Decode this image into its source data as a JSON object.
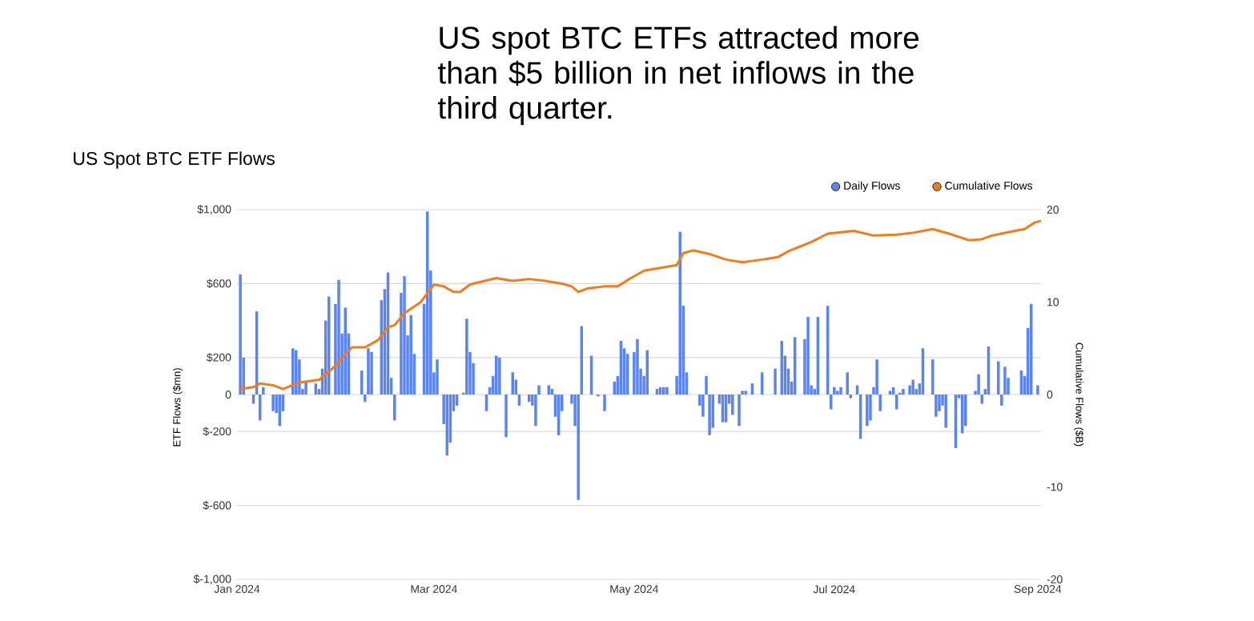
{
  "chart_data": {
    "type": "bar",
    "title": "US spot BTC ETFs attracted more than $5 billion in net inflows in the third quarter.",
    "subtitle": "US Spot BTC ETF Flows",
    "ylabel": "ETF Flows ($mn)",
    "y2label": "Cumulative Flows ($B)",
    "x": [
      "2024-01-02",
      "2024-01-03",
      "2024-01-06",
      "2024-01-07",
      "2024-01-08",
      "2024-01-09",
      "2024-01-12",
      "2024-01-13",
      "2024-01-14",
      "2024-01-15",
      "2024-01-18",
      "2024-01-19",
      "2024-01-20",
      "2024-01-21",
      "2024-01-22",
      "2024-01-25",
      "2024-01-26",
      "2024-01-27",
      "2024-01-28",
      "2024-01-29",
      "2024-01-31",
      "2024-02-01",
      "2024-02-02",
      "2024-02-03",
      "2024-02-04",
      "2024-02-08",
      "2024-02-09",
      "2024-02-10",
      "2024-02-11",
      "2024-02-14",
      "2024-02-15",
      "2024-02-16",
      "2024-02-17",
      "2024-02-18",
      "2024-02-20",
      "2024-02-21",
      "2024-02-22",
      "2024-02-23",
      "2024-02-24",
      "2024-02-27",
      "2024-02-28",
      "2024-02-29",
      "2024-03-01",
      "2024-03-02",
      "2024-03-04",
      "2024-03-05",
      "2024-03-06",
      "2024-03-07",
      "2024-03-08",
      "2024-03-10",
      "2024-03-11",
      "2024-03-12",
      "2024-03-13",
      "2024-03-17",
      "2024-03-18",
      "2024-03-19",
      "2024-03-20",
      "2024-03-21",
      "2024-03-23",
      "2024-03-25",
      "2024-03-26",
      "2024-03-27",
      "2024-03-30",
      "2024-03-31",
      "2024-04-01",
      "2024-04-02",
      "2024-04-05",
      "2024-04-06",
      "2024-04-07",
      "2024-04-08",
      "2024-04-09",
      "2024-04-12",
      "2024-04-13",
      "2024-04-14",
      "2024-04-15",
      "2024-04-18",
      "2024-04-20",
      "2024-04-22",
      "2024-04-25",
      "2024-04-26",
      "2024-04-27",
      "2024-04-28",
      "2024-04-29",
      "2024-05-01",
      "2024-05-02",
      "2024-05-03",
      "2024-05-04",
      "2024-05-05",
      "2024-05-08",
      "2024-05-09",
      "2024-05-10",
      "2024-05-11",
      "2024-05-14",
      "2024-05-15",
      "2024-05-16",
      "2024-05-17",
      "2024-05-21",
      "2024-05-22",
      "2024-05-23",
      "2024-05-24",
      "2024-05-25",
      "2024-05-27",
      "2024-05-28",
      "2024-05-29",
      "2024-05-30",
      "2024-05-31",
      "2024-06-02",
      "2024-06-03",
      "2024-06-04",
      "2024-06-06",
      "2024-06-09",
      "2024-06-13",
      "2024-06-15",
      "2024-06-16",
      "2024-06-17",
      "2024-06-18",
      "2024-06-19",
      "2024-06-22",
      "2024-06-23",
      "2024-06-24",
      "2024-06-25",
      "2024-06-26",
      "2024-06-29",
      "2024-06-30",
      "2024-07-01",
      "2024-07-02",
      "2024-07-03",
      "2024-07-05",
      "2024-07-06",
      "2024-07-08",
      "2024-07-09",
      "2024-07-11",
      "2024-07-12",
      "2024-07-13",
      "2024-07-14",
      "2024-07-15",
      "2024-07-18",
      "2024-07-19",
      "2024-07-20",
      "2024-07-21",
      "2024-07-22",
      "2024-07-24",
      "2024-07-25",
      "2024-07-26",
      "2024-07-27",
      "2024-07-28",
      "2024-07-31",
      "2024-08-01",
      "2024-08-02",
      "2024-08-03",
      "2024-08-04",
      "2024-08-07",
      "2024-08-08",
      "2024-08-09",
      "2024-08-10",
      "2024-08-13",
      "2024-08-14",
      "2024-08-15",
      "2024-08-16",
      "2024-08-17",
      "2024-08-20",
      "2024-08-21",
      "2024-08-22",
      "2024-08-23",
      "2024-08-27",
      "2024-08-28",
      "2024-08-29",
      "2024-08-30",
      "2024-09-01"
    ],
    "series": [
      {
        "name": "Daily Flows",
        "color": "#5b84f3",
        "values": [
          650,
          200,
          -50,
          450,
          -140,
          40,
          -90,
          -100,
          -170,
          -90,
          250,
          240,
          190,
          30,
          70,
          60,
          30,
          140,
          400,
          530,
          490,
          620,
          330,
          470,
          330,
          130,
          -40,
          250,
          230,
          510,
          570,
          660,
          90,
          -140,
          550,
          640,
          320,
          430,
          220,
          490,
          990,
          670,
          120,
          190,
          -160,
          -330,
          -260,
          -90,
          -60,
          10,
          410,
          230,
          170,
          -90,
          40,
          100,
          210,
          200,
          -230,
          120,
          80,
          -60,
          -40,
          -60,
          -170,
          50,
          50,
          30,
          -120,
          -220,
          -90,
          -50,
          -170,
          -570,
          370,
          210,
          -10,
          -90,
          70,
          100,
          290,
          250,
          220,
          230,
          300,
          140,
          100,
          240,
          30,
          40,
          40,
          40,
          100,
          880,
          480,
          120,
          -60,
          -120,
          100,
          -220,
          -180,
          -50,
          -150,
          -150,
          -50,
          -110,
          -170,
          20,
          20,
          60,
          120,
          140,
          290,
          210,
          140,
          70,
          310,
          300,
          420,
          50,
          30,
          420,
          480,
          -80,
          40,
          20,
          40,
          120,
          -20,
          50,
          -240,
          -170,
          -140,
          40,
          190,
          -90,
          20,
          40,
          -80,
          10,
          30,
          50,
          80,
          30,
          60,
          250,
          190,
          -120,
          -90,
          -60,
          -180,
          -290,
          -20,
          -210,
          -170,
          20,
          110,
          -50,
          30,
          260,
          180,
          -60,
          150,
          90,
          130,
          100,
          360,
          490,
          50
        ]
      },
      {
        "name": "Cumulative Flows",
        "type": "line",
        "axis": "y2",
        "color": "#f07c1b",
        "x": [
          "2024-01-02",
          "2024-01-06",
          "2024-01-08",
          "2024-01-12",
          "2024-01-15",
          "2024-01-20",
          "2024-01-26",
          "2024-01-30",
          "2024-02-02",
          "2024-02-05",
          "2024-02-09",
          "2024-02-13",
          "2024-02-16",
          "2024-02-18",
          "2024-02-21",
          "2024-02-26",
          "2024-03-01",
          "2024-03-04",
          "2024-03-07",
          "2024-03-09",
          "2024-03-12",
          "2024-03-20",
          "2024-03-25",
          "2024-03-30",
          "2024-04-04",
          "2024-04-09",
          "2024-04-12",
          "2024-04-14",
          "2024-04-17",
          "2024-04-22",
          "2024-04-26",
          "2024-04-30",
          "2024-05-04",
          "2024-05-09",
          "2024-05-14",
          "2024-05-16",
          "2024-05-19",
          "2024-05-24",
          "2024-05-29",
          "2024-06-03",
          "2024-06-09",
          "2024-06-14",
          "2024-06-17",
          "2024-06-24",
          "2024-06-29",
          "2024-07-07",
          "2024-07-13",
          "2024-07-20",
          "2024-07-25",
          "2024-07-31",
          "2024-08-05",
          "2024-08-11",
          "2024-08-15",
          "2024-08-18",
          "2024-08-25",
          "2024-08-28",
          "2024-08-31",
          "2024-09-02"
        ],
        "values": [
          0.6,
          0.8,
          1.2,
          1.0,
          0.6,
          1.3,
          1.6,
          2.8,
          3.9,
          5.1,
          5.1,
          5.9,
          7.3,
          7.5,
          8.8,
          10.0,
          11.9,
          11.7,
          11.1,
          11.1,
          11.9,
          12.6,
          12.3,
          12.5,
          12.3,
          12.0,
          11.7,
          11.1,
          11.5,
          11.7,
          11.7,
          12.6,
          13.4,
          13.7,
          14.0,
          15.3,
          15.6,
          15.2,
          14.6,
          14.3,
          14.6,
          14.9,
          15.5,
          16.5,
          17.4,
          17.7,
          17.2,
          17.3,
          17.5,
          17.9,
          17.4,
          16.7,
          16.8,
          17.2,
          17.7,
          17.9,
          18.6,
          18.8
        ]
      }
    ],
    "xlim": [
      "2024-01-01",
      "2024-09-02"
    ],
    "xticks": [
      {
        "value": "2024-01-01",
        "label": "Jan 2024"
      },
      {
        "value": "2024-03-01",
        "label": "Mar 2024"
      },
      {
        "value": "2024-05-01",
        "label": "May 2024"
      },
      {
        "value": "2024-07-01",
        "label": "Jul 2024"
      },
      {
        "value": "2024-09-01",
        "label": "Sep 2024"
      }
    ],
    "ylim": [
      -1000,
      1000
    ],
    "yticks": [
      {
        "value": -1000,
        "label": "$-1,000"
      },
      {
        "value": -600,
        "label": "$-600"
      },
      {
        "value": -200,
        "label": "$-200"
      },
      0,
      {
        "value": 200,
        "label": "$200"
      },
      {
        "value": 600,
        "label": "$600"
      },
      {
        "value": 1000,
        "label": "$1,000"
      }
    ],
    "y2lim": [
      -20,
      20
    ],
    "y2ticks": [
      -20,
      -10,
      0,
      10,
      20
    ],
    "grid": "y",
    "legend": "top right",
    "marker": "none"
  }
}
